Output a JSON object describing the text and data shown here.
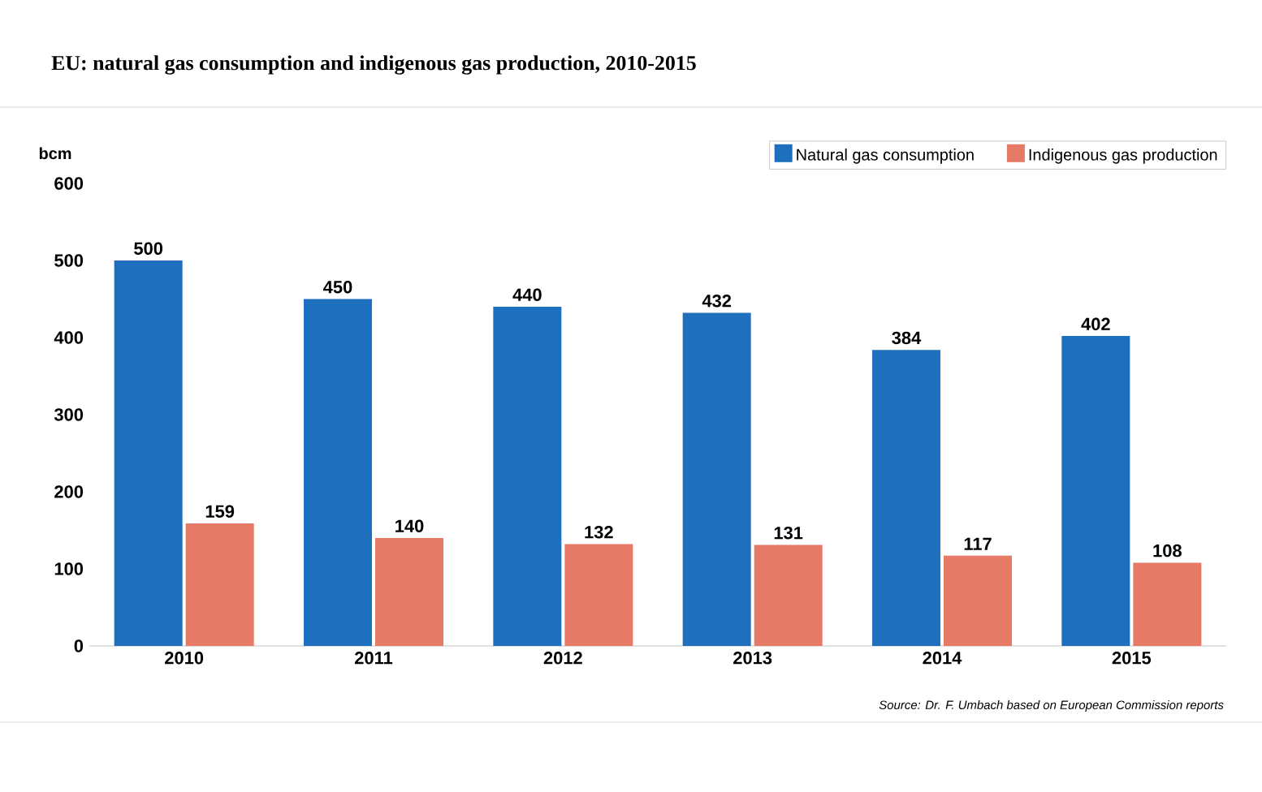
{
  "chart_data": {
    "type": "bar",
    "title": "EU: natural gas consumption and indigenous gas production, 2010-2015",
    "ylabel": "bcm",
    "categories": [
      "2010",
      "2011",
      "2012",
      "2013",
      "2014",
      "2015"
    ],
    "series": [
      {
        "name": "Natural gas consumption",
        "color": "#1f6fbf",
        "values": [
          500,
          450,
          440,
          432,
          384,
          402
        ]
      },
      {
        "name": "Indigenous gas production",
        "color": "#e67a66",
        "values": [
          159,
          140,
          132,
          131,
          117,
          108
        ]
      }
    ],
    "ylim": [
      0,
      600
    ],
    "yticks": [
      0,
      100,
      200,
      300,
      400,
      500,
      600
    ],
    "data_labels": true,
    "legend": "top right",
    "annotations": [
      "Source: Dr. F. Umbach based on European Commission reports"
    ]
  }
}
